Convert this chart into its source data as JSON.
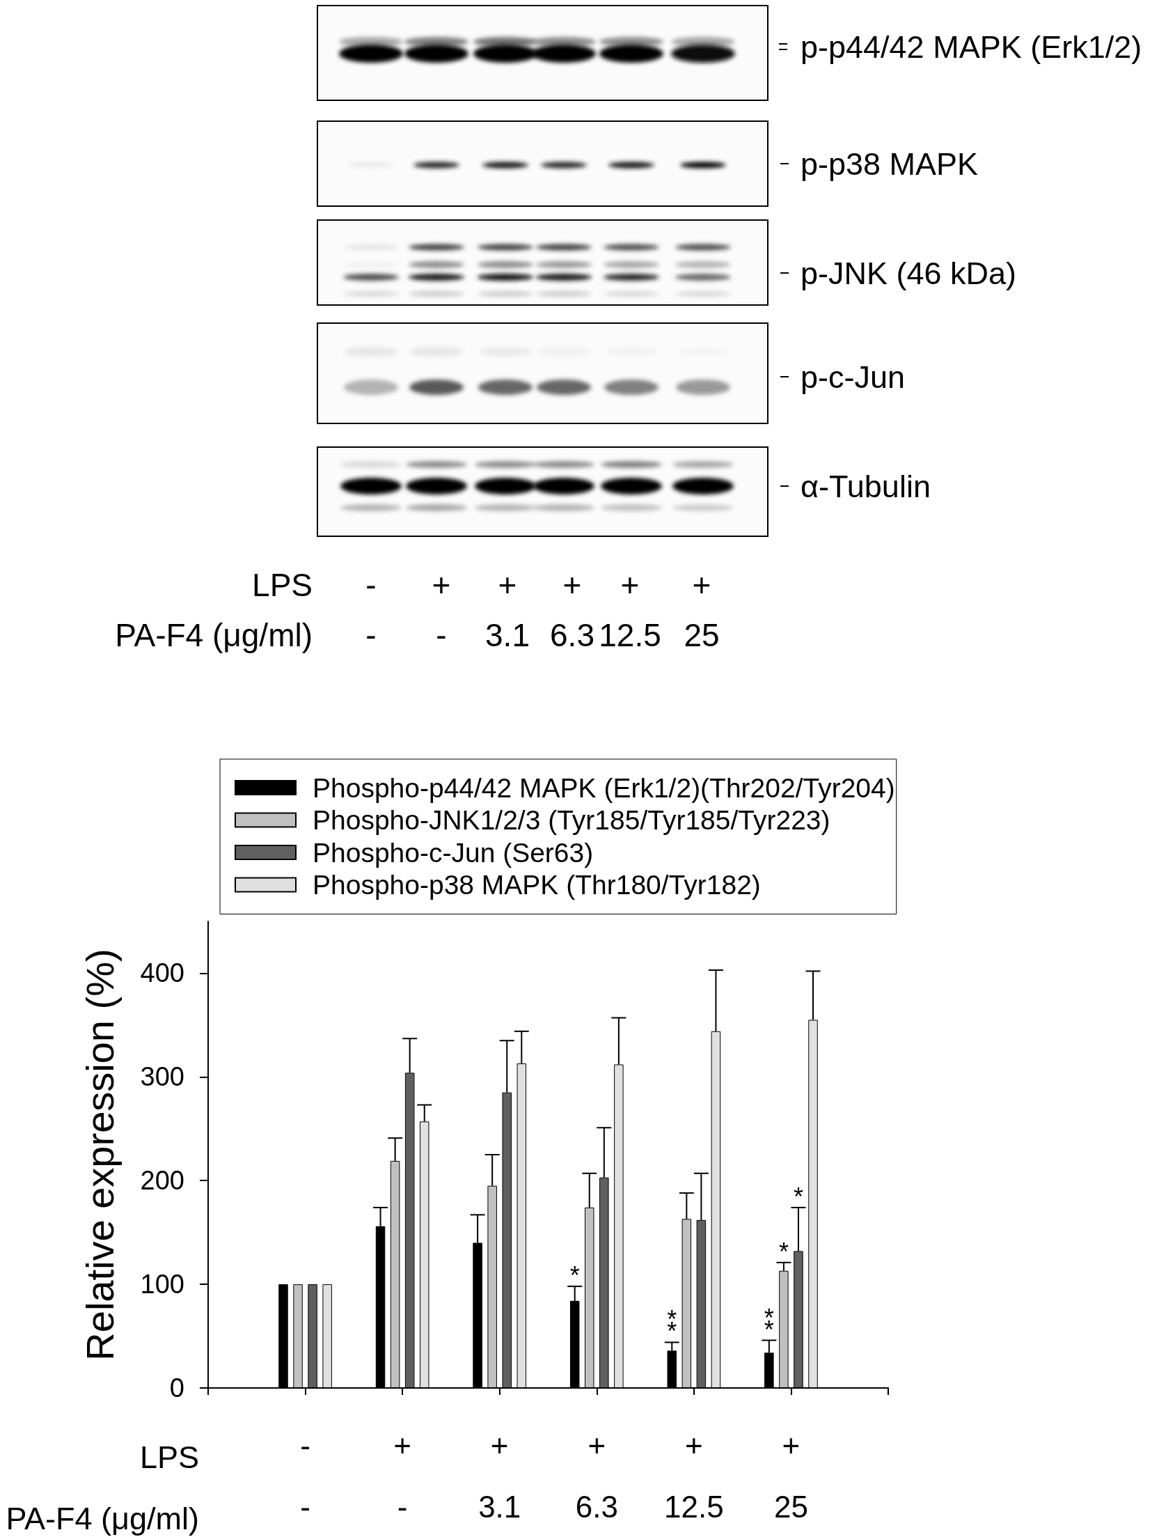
{
  "chart_data": [
    {
      "type": "other",
      "categories": [
        "-\n-",
        "+\n-",
        "+\n3.1",
        "+\n6.3",
        "+\n12.5",
        "+\n25"
      ],
      "xlabel": "LPS\nPA-F4 (μg/ml)",
      "annotations": [
        "p-p44/42 MAPK (Erk1/2)",
        "p-p38 MAPK",
        "p-JNK (46 kDa)",
        "p-c-Jun",
        "α-Tubulin"
      ]
    },
    {
      "type": "bar",
      "categories": [
        "-\n-",
        "+\n-",
        "+\n3.1",
        "+\n6.3",
        "+\n12.5",
        "+\n25"
      ],
      "xlabel": "LPS\nPA-F4 (μg/ml)",
      "ylabel": "Relative expression (%)",
      "series": [
        {
          "name": "Phospho-p44/42 MAPK (Erk1/2)(Thr202/Tyr204)",
          "color": "#000000",
          "values": [
            100,
            156,
            140,
            84,
            36,
            34
          ],
          "errors": [
            null,
            [
              156,
              174
            ],
            [
              140,
              167
            ],
            [
              84,
              98
            ],
            [
              36,
              44
            ],
            [
              34,
              46
            ]
          ]
        },
        {
          "name": "Phospho-JNK1/2/3 (Tyr185/Tyr185/Tyr223)",
          "color": "#c0c0c0",
          "values": [
            100,
            219,
            195,
            174,
            163,
            113
          ],
          "errors": [
            null,
            [
              219,
              241
            ],
            [
              195,
              225
            ],
            [
              174,
              207
            ],
            [
              163,
              188
            ],
            [
              113,
              121
            ]
          ]
        },
        {
          "name": "Phospho-c-Jun (Ser63)",
          "color": "#606060",
          "values": [
            100,
            304,
            285,
            203,
            162,
            132
          ],
          "errors": [
            null,
            [
              304,
              337
            ],
            [
              285,
              335
            ],
            [
              203,
              251
            ],
            [
              162,
              207
            ],
            [
              132,
              174
            ]
          ]
        },
        {
          "name": "Phospho-p38 MAPK (Thr180/Tyr182)",
          "color": "#e0e0e0",
          "values": [
            100,
            257,
            313,
            312,
            344,
            355
          ],
          "errors": [
            null,
            [
              257,
              273
            ],
            [
              313,
              344
            ],
            [
              312,
              357
            ],
            [
              344,
              403
            ],
            [
              355,
              402
            ]
          ]
        }
      ],
      "ylim": [
        0,
        450
      ],
      "yticks": [
        0,
        100,
        200,
        300,
        400
      ],
      "legend": "top",
      "annotations": [
        {
          "text": "*",
          "x": "+\n6.3",
          "y": 98
        },
        {
          "text": "*\n*",
          "x": "+\n12.5",
          "y": 44
        },
        {
          "text": "*\n*",
          "x": "+\n25",
          "y": 46
        },
        {
          "text": "*",
          "x": "+\n25",
          "y": 121
        },
        {
          "text": "*",
          "x": "+\n25",
          "y": 174
        }
      ]
    }
  ]
}
